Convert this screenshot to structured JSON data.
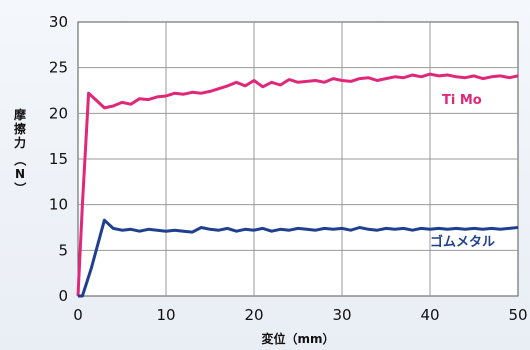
{
  "chart_data": {
    "type": "line",
    "xlabel": "変位（mm）",
    "ylabel": [
      "摩",
      "擦",
      "力",
      "（",
      "N",
      "）"
    ],
    "xlim": [
      0,
      50
    ],
    "ylim": [
      0,
      30
    ],
    "x_ticks": [
      0,
      10,
      20,
      30,
      40,
      50
    ],
    "y_ticks": [
      0,
      5,
      10,
      15,
      20,
      25,
      30
    ],
    "grid": true,
    "series": [
      {
        "name": "Ti Mo",
        "color": "#e0287a",
        "points": [
          [
            0,
            0
          ],
          [
            0.5,
            10
          ],
          [
            1.2,
            22.2
          ],
          [
            2.0,
            21.5
          ],
          [
            3.0,
            20.6
          ],
          [
            4.0,
            20.8
          ],
          [
            5.0,
            21.2
          ],
          [
            6.0,
            21.0
          ],
          [
            7.0,
            21.6
          ],
          [
            8.0,
            21.5
          ],
          [
            9.0,
            21.8
          ],
          [
            10.0,
            21.9
          ],
          [
            11.0,
            22.2
          ],
          [
            12.0,
            22.1
          ],
          [
            13.0,
            22.3
          ],
          [
            14.0,
            22.2
          ],
          [
            15.0,
            22.4
          ],
          [
            16.0,
            22.7
          ],
          [
            17.0,
            23.0
          ],
          [
            18.0,
            23.4
          ],
          [
            19.0,
            23.0
          ],
          [
            20.0,
            23.6
          ],
          [
            21.0,
            22.9
          ],
          [
            22.0,
            23.4
          ],
          [
            23.0,
            23.1
          ],
          [
            24.0,
            23.7
          ],
          [
            25.0,
            23.4
          ],
          [
            26.0,
            23.5
          ],
          [
            27.0,
            23.6
          ],
          [
            28.0,
            23.4
          ],
          [
            29.0,
            23.8
          ],
          [
            30.0,
            23.6
          ],
          [
            31.0,
            23.5
          ],
          [
            32.0,
            23.8
          ],
          [
            33.0,
            23.9
          ],
          [
            34.0,
            23.6
          ],
          [
            35.0,
            23.8
          ],
          [
            36.0,
            24.0
          ],
          [
            37.0,
            23.9
          ],
          [
            38.0,
            24.2
          ],
          [
            39.0,
            24.0
          ],
          [
            40.0,
            24.3
          ],
          [
            41.0,
            24.1
          ],
          [
            42.0,
            24.2
          ],
          [
            43.0,
            24.0
          ],
          [
            44.0,
            23.9
          ],
          [
            45.0,
            24.1
          ],
          [
            46.0,
            23.8
          ],
          [
            47.0,
            24.0
          ],
          [
            48.0,
            24.1
          ],
          [
            49.0,
            23.9
          ],
          [
            50.0,
            24.1
          ]
        ]
      },
      {
        "name": "ゴムメタル",
        "color": "#1f3f8f",
        "points": [
          [
            0,
            0
          ],
          [
            0.5,
            0
          ],
          [
            1.5,
            3.0
          ],
          [
            3.0,
            8.3
          ],
          [
            4.0,
            7.4
          ],
          [
            5.0,
            7.2
          ],
          [
            6.0,
            7.3
          ],
          [
            7.0,
            7.1
          ],
          [
            8.0,
            7.3
          ],
          [
            9.0,
            7.2
          ],
          [
            10.0,
            7.1
          ],
          [
            11.0,
            7.2
          ],
          [
            12.0,
            7.1
          ],
          [
            13.0,
            7.0
          ],
          [
            14.0,
            7.5
          ],
          [
            15.0,
            7.3
          ],
          [
            16.0,
            7.2
          ],
          [
            17.0,
            7.4
          ],
          [
            18.0,
            7.1
          ],
          [
            19.0,
            7.3
          ],
          [
            20.0,
            7.2
          ],
          [
            21.0,
            7.4
          ],
          [
            22.0,
            7.1
          ],
          [
            23.0,
            7.3
          ],
          [
            24.0,
            7.2
          ],
          [
            25.0,
            7.4
          ],
          [
            26.0,
            7.3
          ],
          [
            27.0,
            7.2
          ],
          [
            28.0,
            7.4
          ],
          [
            29.0,
            7.3
          ],
          [
            30.0,
            7.4
          ],
          [
            31.0,
            7.2
          ],
          [
            32.0,
            7.5
          ],
          [
            33.0,
            7.3
          ],
          [
            34.0,
            7.2
          ],
          [
            35.0,
            7.4
          ],
          [
            36.0,
            7.3
          ],
          [
            37.0,
            7.4
          ],
          [
            38.0,
            7.2
          ],
          [
            39.0,
            7.4
          ],
          [
            40.0,
            7.3
          ],
          [
            41.0,
            7.4
          ],
          [
            42.0,
            7.3
          ],
          [
            43.0,
            7.4
          ],
          [
            44.0,
            7.3
          ],
          [
            45.0,
            7.4
          ],
          [
            46.0,
            7.3
          ],
          [
            47.0,
            7.4
          ],
          [
            48.0,
            7.3
          ],
          [
            49.0,
            7.4
          ],
          [
            50.0,
            7.5
          ]
        ]
      }
    ]
  }
}
